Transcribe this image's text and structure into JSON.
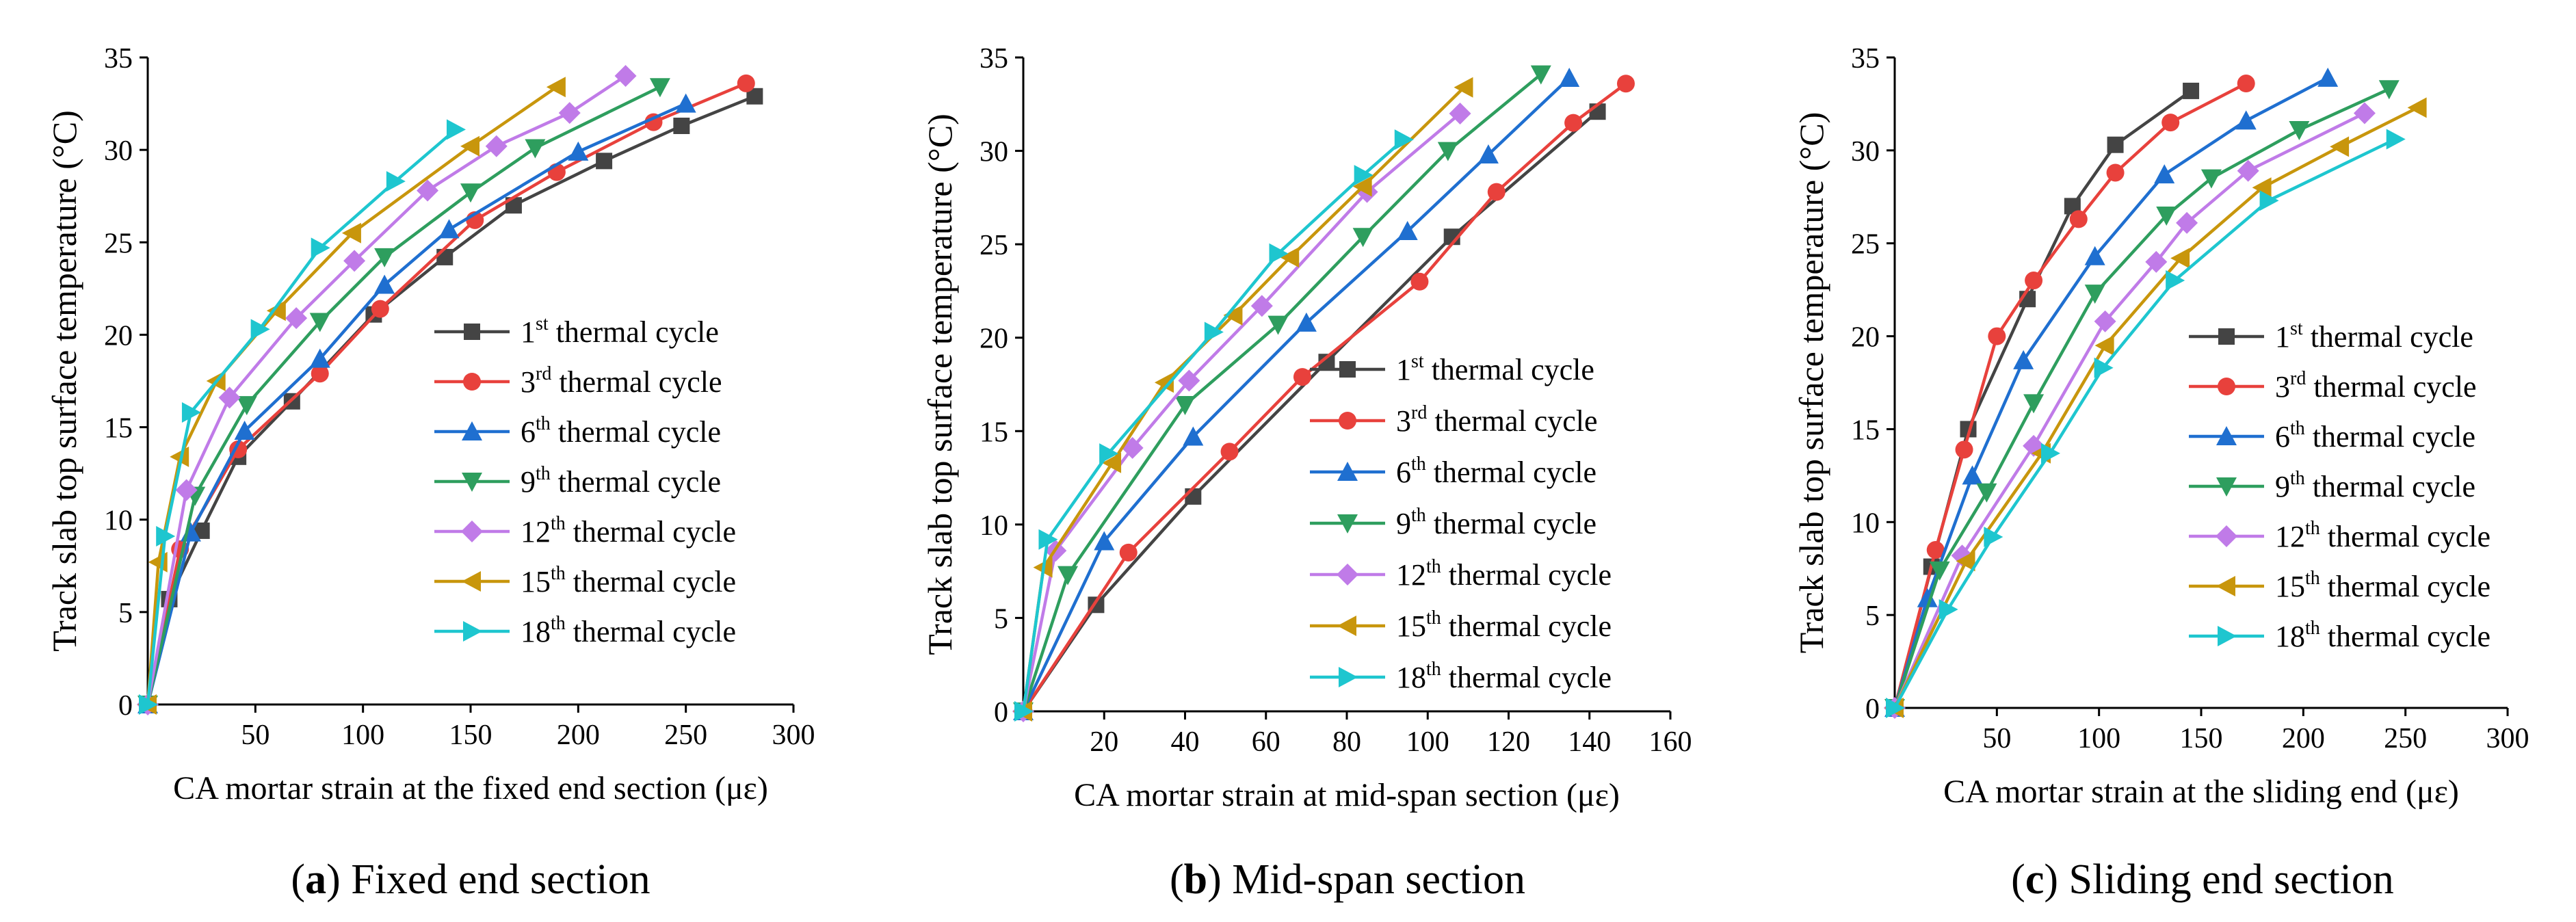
{
  "chart_data": [
    {
      "type": "line",
      "caption_letter": "a",
      "caption_text": ") Fixed end section",
      "xlabel": "CA mortar strain at the fixed end section (με)",
      "ylabel": "Track slab top surface temperature (°C)",
      "xlim": [
        0,
        300
      ],
      "ylim": [
        0,
        35
      ],
      "xticks": [
        50,
        100,
        150,
        200,
        250,
        300
      ],
      "yticks": [
        0,
        5,
        10,
        15,
        20,
        25,
        30,
        35
      ],
      "legend_position": "center-right",
      "series": [
        {
          "name": "1st thermal cycle",
          "ord": "1",
          "sup": "st",
          "suffix": "  thermal cycle",
          "color": "#444444",
          "marker": "square",
          "points": [
            [
              0,
              0
            ],
            [
              10,
              5.7
            ],
            [
              25,
              9.4
            ],
            [
              42,
              13.4
            ],
            [
              67,
              16.4
            ],
            [
              105,
              21.1
            ],
            [
              138,
              24.2
            ],
            [
              170,
              27
            ],
            [
              212,
              29.4
            ],
            [
              248,
              31.3
            ],
            [
              282,
              32.9
            ]
          ]
        },
        {
          "name": "3rd thermal cycle",
          "ord": "3",
          "sup": "rd",
          "suffix": "  thermal cycle",
          "color": "#e8413c",
          "marker": "circle",
          "points": [
            [
              0,
              0
            ],
            [
              15,
              8.4
            ],
            [
              42,
              13.8
            ],
            [
              80,
              17.9
            ],
            [
              108,
              21.4
            ],
            [
              152,
              26.2
            ],
            [
              190,
              28.8
            ],
            [
              235,
              31.5
            ],
            [
              278,
              33.6
            ]
          ]
        },
        {
          "name": "6th thermal cycle",
          "ord": "6",
          "sup": "th",
          "suffix": "  thermal cycle",
          "color": "#1f6fd0",
          "marker": "triangle-up",
          "points": [
            [
              0,
              0
            ],
            [
              20,
              9.3
            ],
            [
              45,
              14.8
            ],
            [
              80,
              18.7
            ],
            [
              110,
              22.7
            ],
            [
              140,
              25.7
            ],
            [
              200,
              29.9
            ],
            [
              250,
              32.5
            ]
          ]
        },
        {
          "name": "9th thermal cycle",
          "ord": "9",
          "sup": "th",
          "suffix": "  thermal cycle",
          "color": "#2e9e5e",
          "marker": "triangle-down",
          "points": [
            [
              0,
              0
            ],
            [
              22,
              11.3
            ],
            [
              46,
              16.2
            ],
            [
              80,
              20.7
            ],
            [
              110,
              24.2
            ],
            [
              150,
              27.7
            ],
            [
              180,
              30.1
            ],
            [
              238,
              33.4
            ]
          ]
        },
        {
          "name": "12th thermal cycle",
          "ord": "12",
          "sup": "th",
          "suffix": " thermal cycle",
          "color": "#c07be8",
          "marker": "diamond",
          "points": [
            [
              0,
              0
            ],
            [
              18,
              11.6
            ],
            [
              38,
              16.6
            ],
            [
              69,
              20.9
            ],
            [
              96,
              24
            ],
            [
              130,
              27.8
            ],
            [
              162,
              30.2
            ],
            [
              196,
              32
            ],
            [
              222,
              34
            ]
          ]
        },
        {
          "name": "15th thermal cycle",
          "ord": "15",
          "sup": "th",
          "suffix": " thermal cycle",
          "color": "#c8960c",
          "marker": "triangle-left",
          "points": [
            [
              0,
              0
            ],
            [
              5,
              7.7
            ],
            [
              15,
              13.4
            ],
            [
              32,
              17.5
            ],
            [
              60,
              21.3
            ],
            [
              95,
              25.5
            ],
            [
              150,
              30.2
            ],
            [
              190,
              33.4
            ]
          ]
        },
        {
          "name": "18th thermal cycle",
          "ord": "18",
          "sup": "th",
          "suffix": " thermal cycle",
          "color": "#1ec6cf",
          "marker": "triangle-right",
          "points": [
            [
              0,
              0
            ],
            [
              8,
              9.1
            ],
            [
              20,
              15.8
            ],
            [
              52,
              20.3
            ],
            [
              80,
              24.7
            ],
            [
              115,
              28.3
            ],
            [
              143,
              31.1
            ]
          ]
        }
      ]
    },
    {
      "type": "line",
      "caption_letter": "b",
      "caption_text": ") Mid-span section",
      "xlabel": "CA mortar strain at mid-span section (με)",
      "ylabel": "Track slab top surface temperature (°C)",
      "xlim": [
        0,
        160
      ],
      "ylim": [
        0,
        35
      ],
      "xticks": [
        20,
        40,
        60,
        80,
        100,
        120,
        140,
        160
      ],
      "yticks": [
        0,
        5,
        10,
        15,
        20,
        25,
        30,
        35
      ],
      "legend_position": "lower-right",
      "series": [
        {
          "name": "1st thermal cycle",
          "ord": "1",
          "sup": "st",
          "suffix": "  thermal cycle",
          "color": "#444444",
          "marker": "square",
          "points": [
            [
              0,
              0
            ],
            [
              18,
              5.7
            ],
            [
              42,
              11.5
            ],
            [
              75,
              18.7
            ],
            [
              106,
              25.4
            ],
            [
              142,
              32.1
            ]
          ]
        },
        {
          "name": "3rd thermal cycle",
          "ord": "3",
          "sup": "rd",
          "suffix": "  thermal cycle",
          "color": "#e8413c",
          "marker": "circle",
          "points": [
            [
              0,
              0
            ],
            [
              26,
              8.5
            ],
            [
              51,
              13.9
            ],
            [
              69,
              17.9
            ],
            [
              98,
              23
            ],
            [
              117,
              27.8
            ],
            [
              136,
              31.5
            ],
            [
              149,
              33.6
            ]
          ]
        },
        {
          "name": "6th thermal cycle",
          "ord": "6",
          "sup": "th",
          "suffix": "  thermal cycle",
          "color": "#1f6fd0",
          "marker": "triangle-up",
          "points": [
            [
              0,
              0
            ],
            [
              20,
              9.1
            ],
            [
              42,
              14.7
            ],
            [
              70,
              20.8
            ],
            [
              95,
              25.7
            ],
            [
              115,
              29.8
            ],
            [
              135,
              33.9
            ]
          ]
        },
        {
          "name": "9th thermal cycle",
          "ord": "9",
          "sup": "th",
          "suffix": "  thermal cycle",
          "color": "#2e9e5e",
          "marker": "triangle-down",
          "points": [
            [
              0,
              0
            ],
            [
              11,
              7.3
            ],
            [
              40,
              16.4
            ],
            [
              63,
              20.7
            ],
            [
              84,
              25.4
            ],
            [
              105,
              30
            ],
            [
              128,
              34.1
            ]
          ]
        },
        {
          "name": "12th thermal cycle",
          "ord": "12",
          "sup": "th",
          "suffix": " thermal cycle",
          "color": "#c07be8",
          "marker": "diamond",
          "points": [
            [
              0,
              0
            ],
            [
              8,
              8.6
            ],
            [
              27,
              14.1
            ],
            [
              41,
              17.7
            ],
            [
              59,
              21.7
            ],
            [
              85,
              27.8
            ],
            [
              108,
              32
            ]
          ]
        },
        {
          "name": "15th thermal cycle",
          "ord": "15",
          "sup": "th",
          "suffix": " thermal cycle",
          "color": "#c8960c",
          "marker": "triangle-left",
          "points": [
            [
              0,
              0
            ],
            [
              5,
              7.7
            ],
            [
              22,
              13.3
            ],
            [
              35,
              17.6
            ],
            [
              52,
              21.2
            ],
            [
              66,
              24.3
            ],
            [
              84,
              28.1
            ],
            [
              109,
              33.4
            ]
          ]
        },
        {
          "name": "18th thermal cycle",
          "ord": "18",
          "sup": "th",
          "suffix": " thermal cycle",
          "color": "#1ec6cf",
          "marker": "triangle-right",
          "points": [
            [
              0,
              0
            ],
            [
              6,
              9.2
            ],
            [
              21,
              13.8
            ],
            [
              47,
              20.3
            ],
            [
              63,
              24.5
            ],
            [
              84,
              28.7
            ],
            [
              94,
              30.6
            ]
          ]
        }
      ]
    },
    {
      "type": "line",
      "caption_letter": "c",
      "caption_text": ") Sliding end section",
      "xlabel": "CA mortar strain at the sliding end  (με)",
      "ylabel": "Track slab top surface temperature (°C)",
      "xlim": [
        0,
        300
      ],
      "ylim": [
        0,
        35
      ],
      "xticks": [
        50,
        100,
        150,
        200,
        250,
        300
      ],
      "yticks": [
        0,
        5,
        10,
        15,
        20,
        25,
        30,
        35
      ],
      "legend_position": "center-right",
      "series": [
        {
          "name": "1st thermal cycle",
          "ord": "1",
          "sup": "st",
          "suffix": "  thermal cycle",
          "color": "#444444",
          "marker": "square",
          "points": [
            [
              0,
              0
            ],
            [
              18,
              7.6
            ],
            [
              36,
              15
            ],
            [
              65,
              22
            ],
            [
              87,
              27
            ],
            [
              108,
              30.3
            ],
            [
              145,
              33.2
            ]
          ]
        },
        {
          "name": "3rd thermal cycle",
          "ord": "3",
          "sup": "rd",
          "suffix": "  thermal cycle",
          "color": "#e8413c",
          "marker": "circle",
          "points": [
            [
              0,
              0
            ],
            [
              20,
              8.5
            ],
            [
              34,
              13.9
            ],
            [
              50,
              20
            ],
            [
              68,
              23
            ],
            [
              90,
              26.3
            ],
            [
              108,
              28.8
            ],
            [
              135,
              31.5
            ],
            [
              172,
              33.6
            ]
          ]
        },
        {
          "name": "6th thermal cycle",
          "ord": "6",
          "sup": "th",
          "suffix": "  thermal cycle",
          "color": "#1f6fd0",
          "marker": "triangle-up",
          "points": [
            [
              0,
              0
            ],
            [
              16,
              5.9
            ],
            [
              38,
              12.5
            ],
            [
              63,
              18.7
            ],
            [
              98,
              24.3
            ],
            [
              132,
              28.7
            ],
            [
              172,
              31.6
            ],
            [
              212,
              33.9
            ]
          ]
        },
        {
          "name": "9th thermal cycle",
          "ord": "9",
          "sup": "th",
          "suffix": "  thermal cycle",
          "color": "#2e9e5e",
          "marker": "triangle-down",
          "points": [
            [
              0,
              0
            ],
            [
              22,
              7.4
            ],
            [
              45,
              11.6
            ],
            [
              68,
              16.4
            ],
            [
              98,
              22.3
            ],
            [
              133,
              26.5
            ],
            [
              155,
              28.5
            ],
            [
              198,
              31.1
            ],
            [
              242,
              33.3
            ]
          ]
        },
        {
          "name": "12th thermal cycle",
          "ord": "12",
          "sup": "th",
          "suffix": " thermal cycle",
          "color": "#c07be8",
          "marker": "diamond",
          "points": [
            [
              0,
              0
            ],
            [
              33,
              8.2
            ],
            [
              68,
              14.1
            ],
            [
              103,
              20.8
            ],
            [
              128,
              24
            ],
            [
              143,
              26.1
            ],
            [
              173,
              28.9
            ],
            [
              230,
              32
            ]
          ]
        },
        {
          "name": "15th thermal cycle",
          "ord": "15",
          "sup": "th",
          "suffix": " thermal cycle",
          "color": "#c8960c",
          "marker": "triangle-left",
          "points": [
            [
              0,
              0
            ],
            [
              35,
              7.9
            ],
            [
              72,
              13.7
            ],
            [
              103,
              19.5
            ],
            [
              140,
              24.2
            ],
            [
              180,
              28
            ],
            [
              218,
              30.2
            ],
            [
              256,
              32.3
            ]
          ]
        },
        {
          "name": "18th thermal cycle",
          "ord": "18",
          "sup": "th",
          "suffix": " thermal cycle",
          "color": "#1ec6cf",
          "marker": "triangle-right",
          "points": [
            [
              0,
              0
            ],
            [
              26,
              5.3
            ],
            [
              48,
              9.2
            ],
            [
              76,
              13.7
            ],
            [
              102,
              18.3
            ],
            [
              137,
              23
            ],
            [
              183,
              27.3
            ],
            [
              245,
              30.6
            ]
          ]
        }
      ]
    }
  ]
}
